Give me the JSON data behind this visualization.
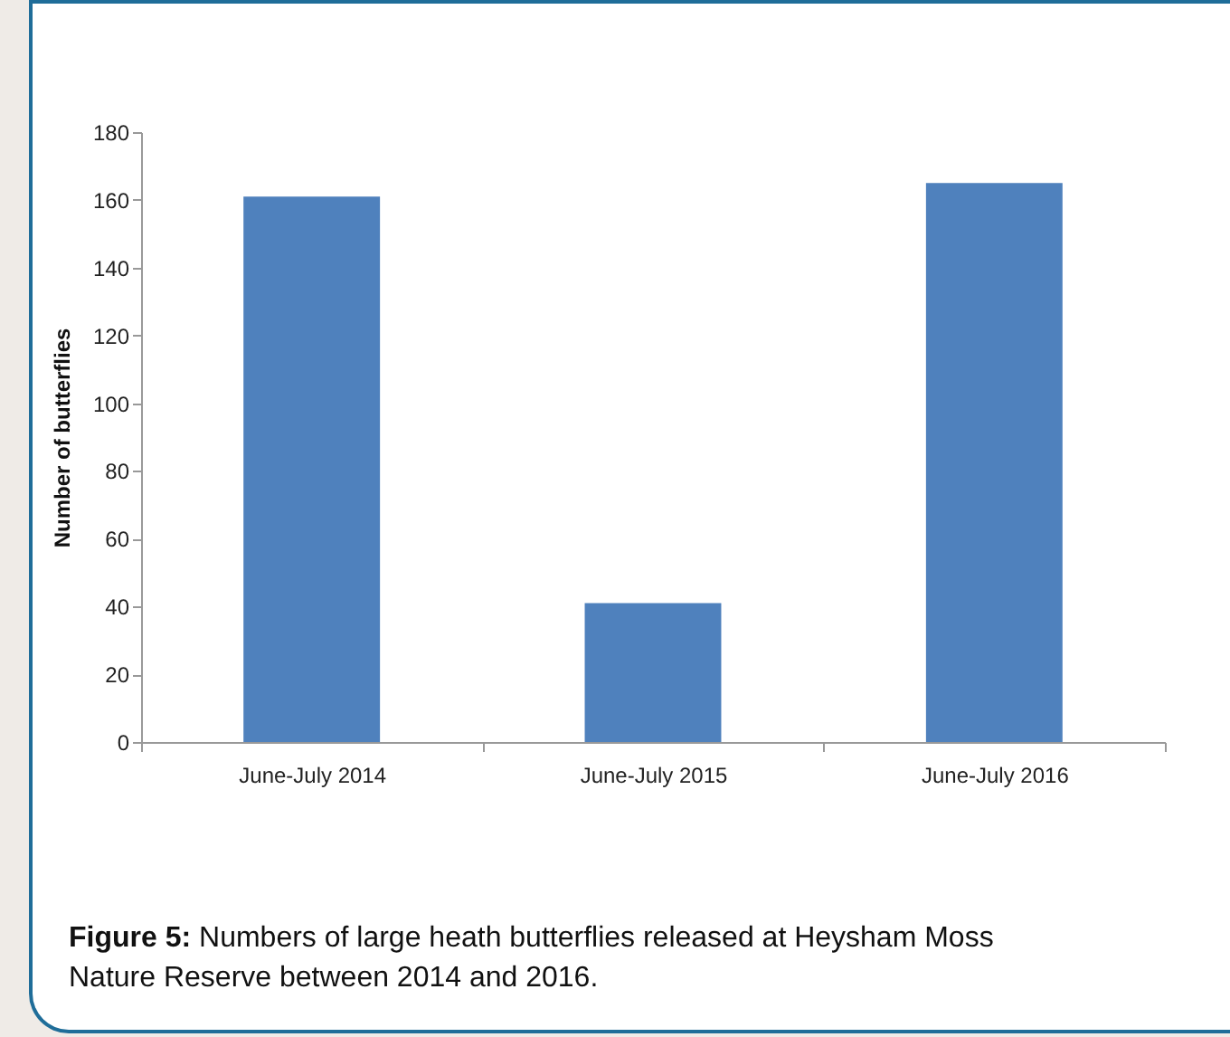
{
  "chart_data": {
    "type": "bar",
    "ylabel": "Number of butterflies",
    "categories": [
      "June-July 2014",
      "June-July 2015",
      "June-July 2016"
    ],
    "values": [
      161,
      41,
      165
    ],
    "color": "#4f81bd",
    "ylim": [
      0,
      180
    ],
    "yticks": [
      0,
      20,
      40,
      60,
      80,
      100,
      120,
      140,
      160,
      180
    ],
    "grid": false,
    "annotations": [
      "Figure 5: Numbers of large heath butterflies released at Heysham Moss Nature Reserve between 2014 and 2016."
    ]
  }
}
